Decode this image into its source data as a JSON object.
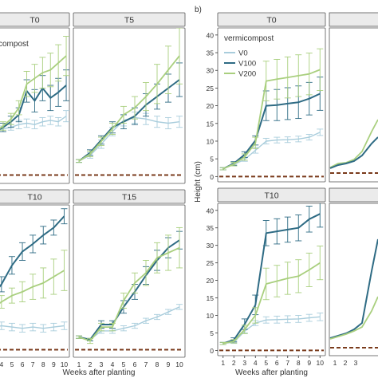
{
  "panel_labels": {
    "b": "b)"
  },
  "chart_data": [
    {
      "id": "a-T0",
      "type": "line",
      "title": "T0",
      "x": [
        1,
        2,
        3,
        4,
        5,
        6,
        7,
        8,
        9,
        10
      ],
      "series": [
        {
          "name": "V0",
          "values": [
            3.1,
            3.3,
            3.4,
            3.6,
            3.7,
            3.6,
            3.8,
            3.9,
            3.8,
            4.2
          ],
          "err": [
            0.2,
            0.2,
            0.2,
            0.3,
            0.3,
            0.3,
            0.3,
            0.3,
            0.3,
            0.4
          ]
        },
        {
          "name": "V100",
          "values": [
            3.1,
            3.4,
            3.8,
            4.3,
            6.0,
            5.3,
            6.2,
            5.5,
            5.9,
            6.4
          ],
          "err": [
            0.2,
            0.3,
            0.4,
            0.5,
            0.8,
            0.8,
            0.9,
            0.9,
            1.0,
            1.1
          ]
        },
        {
          "name": "V200",
          "values": [
            3.1,
            3.5,
            4.0,
            4.8,
            6.5,
            6.9,
            7.3,
            7.5,
            8.0,
            8.5
          ],
          "err": [
            0.2,
            0.3,
            0.4,
            0.5,
            0.9,
            1.0,
            1.1,
            1.2,
            1.3,
            1.4
          ]
        }
      ]
    },
    {
      "id": "a-T5",
      "type": "line",
      "title": "T5",
      "x": [
        1,
        2,
        3,
        4,
        5,
        6,
        7,
        8,
        9,
        10
      ],
      "series": [
        {
          "name": "V0",
          "values": [
            1.0,
            1.4,
            2.2,
            3.1,
            3.9,
            4.1,
            4.0,
            3.8,
            3.7,
            3.8
          ],
          "err": [
            0.1,
            0.2,
            0.3,
            0.3,
            0.4,
            0.4,
            0.4,
            0.4,
            0.4,
            0.4
          ]
        },
        {
          "name": "V100",
          "values": [
            1.0,
            1.6,
            2.5,
            3.4,
            3.8,
            4.2,
            5.0,
            5.6,
            6.2,
            6.8
          ],
          "err": [
            0.1,
            0.2,
            0.3,
            0.4,
            0.5,
            0.6,
            0.8,
            0.9,
            1.0,
            1.2
          ]
        },
        {
          "name": "V200",
          "values": [
            1.0,
            1.5,
            2.4,
            3.3,
            4.3,
            4.8,
            5.6,
            6.5,
            7.5,
            8.5
          ],
          "err": [
            0.1,
            0.2,
            0.3,
            0.4,
            0.6,
            0.8,
            1.0,
            1.4,
            1.7,
            2.0
          ]
        }
      ]
    },
    {
      "id": "a-T10",
      "type": "line",
      "title": "T10",
      "x": [
        1,
        2,
        3,
        4,
        5,
        6,
        7,
        8,
        9,
        10
      ],
      "series": [
        {
          "name": "V0",
          "values": [
            1.6,
            1.3,
            1.7,
            1.9,
            1.8,
            1.7,
            1.8,
            1.7,
            1.8,
            1.9
          ],
          "err": [
            0.1,
            0.1,
            0.2,
            0.3,
            0.3,
            0.3,
            0.3,
            0.3,
            0.3,
            0.3
          ]
        },
        {
          "name": "V100",
          "values": [
            1.8,
            3.2,
            4.1,
            5.2,
            6.7,
            7.8,
            8.4,
            9.1,
            9.7,
            10.6
          ],
          "err": [
            0.2,
            0.4,
            0.5,
            0.6,
            0.7,
            0.7,
            0.7,
            0.7,
            0.6,
            0.6
          ]
        },
        {
          "name": "V200",
          "values": [
            1.7,
            2.8,
            3.2,
            3.8,
            4.3,
            4.6,
            5.0,
            5.3,
            5.8,
            6.3
          ],
          "err": [
            0.2,
            0.3,
            0.4,
            0.5,
            0.6,
            0.8,
            1.0,
            1.2,
            1.4,
            1.6
          ]
        }
      ]
    },
    {
      "id": "a-T15",
      "type": "line",
      "title": "T15",
      "x": [
        1,
        2,
        3,
        4,
        5,
        6,
        7,
        8,
        9,
        10
      ],
      "series": [
        {
          "name": "V0",
          "values": [
            1.0,
            0.8,
            1.5,
            1.5,
            1.7,
            1.9,
            2.3,
            2.6,
            3.0,
            3.4
          ],
          "err": [
            0.1,
            0.1,
            0.2,
            0.2,
            0.2,
            0.2,
            0.2,
            0.2,
            0.2,
            0.2
          ]
        },
        {
          "name": "V100",
          "values": [
            1.0,
            0.8,
            2.0,
            2.0,
            3.4,
            4.6,
            5.9,
            7.1,
            8.1,
            8.7
          ],
          "err": [
            0.1,
            0.1,
            0.3,
            0.3,
            0.5,
            0.6,
            0.7,
            0.8,
            0.8,
            0.7
          ]
        },
        {
          "name": "V200",
          "values": [
            1.0,
            0.7,
            1.8,
            1.8,
            3.9,
            5.3,
            6.1,
            7.3,
            7.7,
            8.1
          ],
          "err": [
            0.1,
            0.2,
            0.3,
            0.3,
            0.6,
            0.8,
            1.0,
            1.2,
            1.4,
            1.6
          ]
        }
      ]
    },
    {
      "id": "b-T0",
      "type": "line",
      "title": "T0",
      "xlabel": "",
      "ylabel": "Height (cm)",
      "ylim": [
        0,
        40
      ],
      "yticks": [
        0,
        5,
        10,
        15,
        20,
        25,
        30,
        35,
        40
      ],
      "x": [
        1,
        2,
        3,
        4,
        5,
        6,
        7,
        8,
        9,
        10
      ],
      "legend": {
        "title": "vermicompost",
        "placement": "top-left",
        "entries": [
          "V0",
          "V100",
          "V200"
        ]
      },
      "series": [
        {
          "name": "V0",
          "values": [
            2.2,
            3.4,
            4.8,
            7.4,
            10.0,
            10.3,
            10.4,
            10.6,
            11.1,
            12.5
          ],
          "err": [
            0.3,
            0.4,
            0.5,
            0.8,
            0.8,
            0.8,
            0.8,
            0.8,
            0.8,
            0.9
          ]
        },
        {
          "name": "V100",
          "values": [
            2.2,
            3.7,
            6.2,
            10.2,
            20.0,
            20.2,
            20.6,
            21.0,
            22.0,
            23.4
          ],
          "err": [
            0.3,
            0.5,
            0.8,
            1.3,
            4.2,
            4.4,
            4.5,
            4.6,
            4.6,
            4.7
          ]
        },
        {
          "name": "V200",
          "values": [
            2.2,
            3.5,
            5.5,
            9.5,
            27.0,
            27.5,
            28.0,
            28.5,
            29.0,
            30.2
          ],
          "err": [
            0.3,
            0.5,
            0.9,
            1.6,
            5.6,
            5.6,
            5.8,
            5.9,
            5.9,
            5.9
          ]
        }
      ]
    },
    {
      "id": "b-T10",
      "type": "line",
      "title": "T10",
      "xlabel": "Weeks after planting",
      "ylabel": "Height (cm)",
      "ylim": [
        0,
        40
      ],
      "yticks": [
        0,
        5,
        10,
        15,
        20,
        25,
        30,
        35,
        40
      ],
      "xticks": [
        1,
        2,
        3,
        4,
        5,
        6,
        7,
        8,
        9,
        10
      ],
      "x": [
        1,
        2,
        3,
        4,
        5,
        6,
        7,
        8,
        9,
        10
      ],
      "series": [
        {
          "name": "V0",
          "values": [
            2.0,
            2.3,
            5.5,
            7.8,
            8.7,
            8.8,
            8.9,
            9.0,
            9.3,
            9.6
          ],
          "err": [
            0.3,
            0.3,
            0.5,
            0.7,
            0.9,
            1.0,
            1.0,
            1.0,
            1.0,
            1.1
          ]
        },
        {
          "name": "V100",
          "values": [
            2.0,
            3.0,
            7.5,
            13.0,
            33.5,
            34.0,
            34.5,
            35.0,
            37.5,
            39.0
          ],
          "err": [
            0.3,
            0.6,
            1.5,
            2.8,
            3.6,
            3.6,
            3.6,
            3.7,
            3.7,
            3.8
          ]
        },
        {
          "name": "V200",
          "values": [
            2.0,
            2.6,
            6.0,
            10.0,
            19.0,
            19.8,
            20.6,
            21.2,
            23.0,
            25.0
          ],
          "err": [
            0.3,
            0.5,
            1.2,
            2.2,
            4.5,
            4.5,
            4.6,
            4.7,
            4.8,
            4.8
          ]
        }
      ]
    }
  ],
  "partial_axes": {
    "left_xticks": [
      "4",
      "5",
      "6",
      "7",
      "8",
      "9",
      "10"
    ],
    "left_xlabel": "Weeks after planting",
    "right_xticks": [
      "1",
      "2",
      "3"
    ],
    "right_panel_yticks": [
      "0"
    ]
  },
  "legend_partial_title": "compost",
  "colors": {
    "V0": "#a9cddc",
    "V100": "#2e6b84",
    "V200": "#a9cf7e",
    "strip": "#ebebeb",
    "border": "#555555",
    "baseline": "#7a3b1c"
  }
}
